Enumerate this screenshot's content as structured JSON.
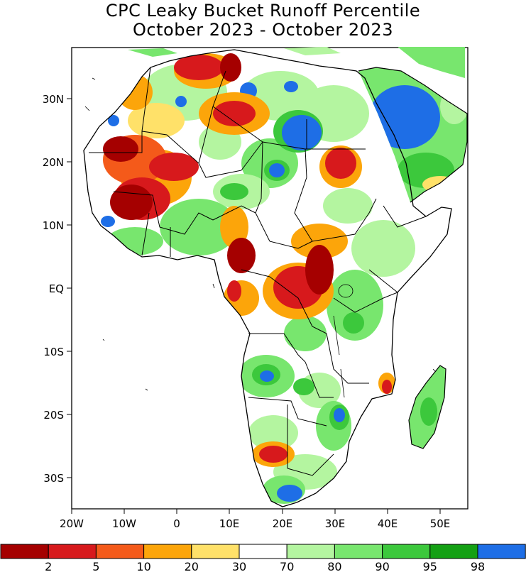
{
  "title_line1": "CPC Leaky Bucket Runoff Percentile",
  "title_line2": "October 2023 - October 2023",
  "map": {
    "lon_range": [
      -20,
      55
    ],
    "lat_range": [
      -35,
      38
    ],
    "lat_ticks": [
      "30N",
      "20N",
      "10N",
      "EQ",
      "10S",
      "20S",
      "30S"
    ],
    "lon_ticks": [
      "20W",
      "10W",
      "0",
      "10E",
      "20E",
      "30E",
      "40E",
      "50E"
    ]
  },
  "legend": {
    "colors": [
      "#a50000",
      "#d7191c",
      "#f45a1a",
      "#fca50a",
      "#ffe169",
      "#ffffff",
      "#b4f5a0",
      "#78e66e",
      "#3cc83c",
      "#14a014",
      "#1e6ee6"
    ],
    "labels": [
      "2",
      "5",
      "10",
      "20",
      "30",
      "70",
      "80",
      "90",
      "95",
      "98"
    ]
  }
}
